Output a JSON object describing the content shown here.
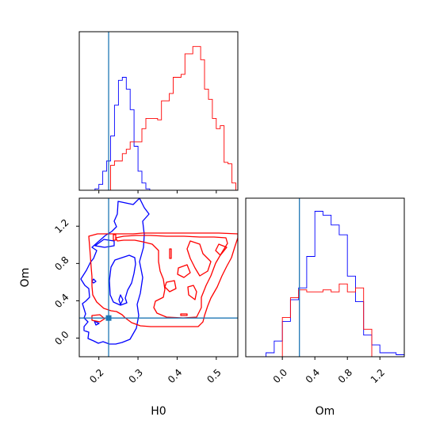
{
  "colors": {
    "series_a": "#0000ff",
    "series_b": "#ff0000",
    "truth": "#1f77b4",
    "axes": "#000000"
  },
  "chart_data": [
    {
      "type": "histogram",
      "panel": "H0 marginal",
      "x_bin_edges": [
        0.15,
        0.16,
        0.17,
        0.18,
        0.19,
        0.2,
        0.21,
        0.22,
        0.23,
        0.24,
        0.25,
        0.26,
        0.27,
        0.28,
        0.29,
        0.3,
        0.31,
        0.32,
        0.33,
        0.34,
        0.35,
        0.36,
        0.37,
        0.38,
        0.39,
        0.4,
        0.41,
        0.42,
        0.43,
        0.44,
        0.45,
        0.46,
        0.47,
        0.48,
        0.49,
        0.5,
        0.51,
        0.52,
        0.53,
        0.54,
        0.55
      ],
      "series": [
        {
          "values": [
            0,
            0,
            0,
            0,
            0.01,
            0.04,
            0.13,
            0.2,
            0.37,
            0.58,
            0.75,
            0.77,
            0.69,
            0.55,
            0.3,
            0.13,
            0.05,
            0.01,
            0,
            0,
            0,
            0,
            0,
            0,
            0,
            0,
            0,
            0,
            0,
            0,
            0,
            0,
            0,
            0,
            0,
            0,
            0,
            0,
            0,
            0
          ]
        },
        {
          "values": [
            0,
            0,
            0,
            0,
            0,
            0,
            0,
            0,
            0.17,
            0.2,
            0.2,
            0.25,
            0.28,
            0.33,
            0.33,
            0.33,
            0.42,
            0.49,
            0.49,
            0.49,
            0.48,
            0.61,
            0.61,
            0.66,
            0.77,
            0.77,
            0.79,
            0.93,
            0.93,
            0.98,
            0.98,
            0.89,
            0.69,
            0.62,
            0.49,
            0.42,
            0.44,
            0.19,
            0.18,
            0.05
          ]
        }
      ],
      "x_range": [
        0.15,
        0.555
      ],
      "truth": 0.225,
      "y_ticks_shown": false
    },
    {
      "type": "contour",
      "panel": "H0 vs Om",
      "x_range": [
        0.15,
        0.555
      ],
      "y_range": [
        -0.2,
        1.5
      ],
      "x_ticks": [
        "0.2",
        "0.3",
        "0.4",
        "0.5"
      ],
      "y_ticks": [
        "0.0",
        "0.4",
        "0.8",
        "1.2"
      ],
      "truth": {
        "x": 0.225,
        "y": 0.215
      },
      "xlabel": "H0",
      "ylabel": "Om"
    },
    {
      "type": "histogram",
      "panel": "Om marginal",
      "x_bin_edges": [
        -0.3,
        -0.2,
        -0.1,
        0,
        0.1,
        0.2,
        0.3,
        0.4,
        0.5,
        0.6,
        0.7,
        0.8,
        0.9,
        1,
        1.1,
        1.2,
        1.3,
        1.4,
        1.5
      ],
      "series": [
        {
          "values": [
            0,
            0.02,
            0.08,
            0.18,
            0.29,
            0.35,
            0.51,
            0.74,
            0.72,
            0.67,
            0.62,
            0.41,
            0.28,
            0.11,
            0.06,
            0.02,
            0.02,
            0.01
          ]
        },
        {
          "values": [
            0,
            0,
            0,
            0.2,
            0.3,
            0.34,
            0.33,
            0.33,
            0.34,
            0.33,
            0.37,
            0.33,
            0.35,
            0.14,
            0,
            0,
            0,
            0
          ]
        }
      ],
      "x_range": [
        -0.45,
        1.5
      ],
      "x_ticks": [
        "0.0",
        "0.4",
        "0.8",
        "1.2"
      ],
      "truth": 0.21,
      "xlabel": "Om",
      "y_ticks_shown": false
    }
  ]
}
